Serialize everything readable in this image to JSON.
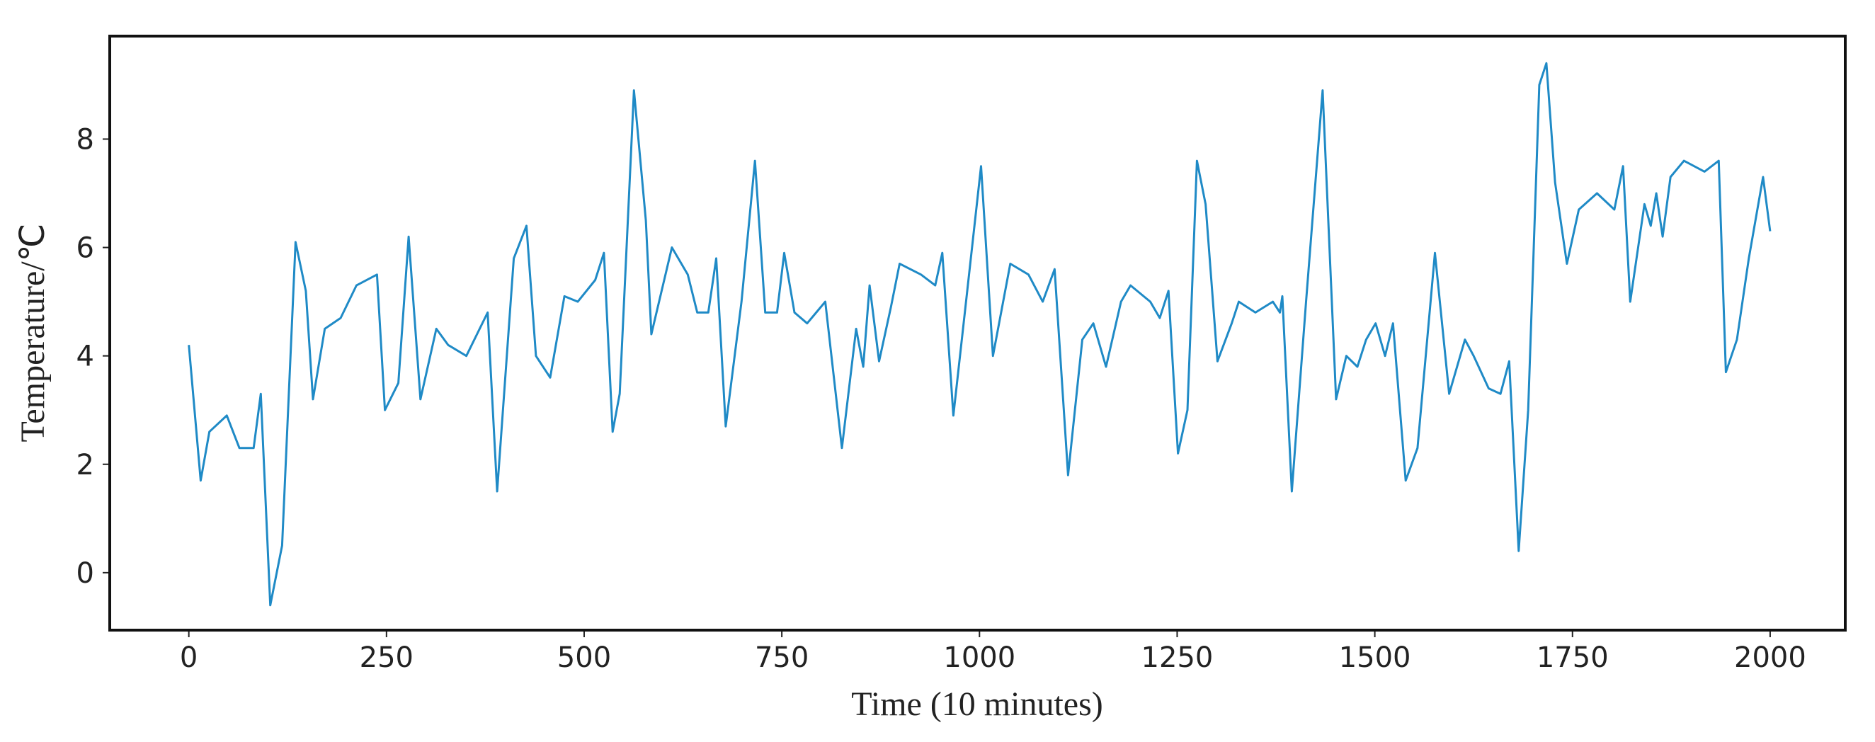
{
  "chart_data": {
    "type": "line",
    "x_label": "Time  (10 minutes)",
    "y_label": "Temperature/℃",
    "x": [
      0,
      15,
      26,
      48,
      64,
      82,
      91,
      103,
      118,
      135,
      148,
      157,
      172,
      192,
      212,
      238,
      248,
      265,
      278,
      293,
      313,
      328,
      351,
      378,
      390,
      411,
      427,
      439,
      457,
      475,
      492,
      514,
      525,
      536,
      545,
      563,
      578,
      585,
      611,
      631,
      643,
      657,
      667,
      679,
      699,
      716,
      729,
      744,
      753,
      766,
      782,
      805,
      826,
      844,
      853,
      861,
      873,
      888,
      899,
      926,
      944,
      953,
      967,
      983,
      1002,
      1017,
      1039,
      1062,
      1080,
      1095,
      1112,
      1130,
      1144,
      1160,
      1179,
      1191,
      1216,
      1228,
      1239,
      1251,
      1263,
      1275,
      1286,
      1301,
      1319,
      1328,
      1349,
      1371,
      1380,
      1383,
      1395,
      1413,
      1434,
      1451,
      1464,
      1478,
      1489,
      1501,
      1513,
      1523,
      1539,
      1554,
      1576,
      1594,
      1614,
      1625,
      1644,
      1659,
      1670,
      1682,
      1694,
      1708,
      1717,
      1728,
      1743,
      1758,
      1781,
      1803,
      1814,
      1823,
      1841,
      1849,
      1856,
      1864,
      1874,
      1891,
      1917,
      1935,
      1944,
      1958,
      1973,
      1991,
      2000
    ],
    "series": [
      {
        "name": "Temperature",
        "color": "#1f8ac6",
        "values": [
          4.2,
          1.7,
          2.6,
          2.9,
          2.3,
          2.3,
          3.3,
          -0.6,
          0.5,
          6.1,
          5.2,
          3.2,
          4.5,
          4.7,
          5.3,
          5.5,
          3.0,
          3.5,
          6.2,
          3.2,
          4.5,
          4.2,
          4.0,
          4.8,
          1.5,
          5.8,
          6.4,
          4.0,
          3.6,
          5.1,
          5.0,
          5.4,
          5.9,
          2.6,
          3.3,
          8.9,
          6.5,
          4.4,
          6.0,
          5.5,
          4.8,
          4.8,
          5.8,
          2.7,
          5.0,
          7.6,
          4.8,
          4.8,
          5.9,
          4.8,
          4.6,
          5.0,
          2.3,
          4.5,
          3.8,
          5.3,
          3.9,
          4.9,
          5.7,
          5.5,
          5.3,
          5.9,
          2.9,
          5.0,
          7.5,
          4.0,
          5.7,
          5.5,
          5.0,
          5.6,
          1.8,
          4.3,
          4.6,
          3.8,
          5.0,
          5.3,
          5.0,
          4.7,
          5.2,
          2.2,
          3.0,
          7.6,
          6.8,
          3.9,
          4.6,
          5.0,
          4.8,
          5.0,
          4.8,
          5.1,
          1.5,
          5.0,
          8.9,
          3.2,
          4.0,
          3.8,
          4.3,
          4.6,
          4.0,
          4.6,
          1.7,
          2.3,
          5.9,
          3.3,
          4.3,
          4.0,
          3.4,
          3.3,
          3.9,
          0.4,
          3.0,
          9.0,
          9.4,
          7.2,
          5.7,
          6.7,
          7.0,
          6.7,
          7.5,
          5.0,
          6.8,
          6.4,
          7.0,
          6.2,
          7.3,
          7.6,
          7.4,
          7.6,
          3.7,
          4.3,
          5.8,
          7.3,
          6.3
        ]
      }
    ],
    "xlim": [
      -100,
      2095
    ],
    "ylim": [
      -1.06,
      9.9
    ],
    "xticks": [
      0,
      250,
      500,
      750,
      1000,
      1250,
      1500,
      1750,
      2000
    ],
    "yticks": [
      0,
      2,
      4,
      6,
      8
    ]
  }
}
